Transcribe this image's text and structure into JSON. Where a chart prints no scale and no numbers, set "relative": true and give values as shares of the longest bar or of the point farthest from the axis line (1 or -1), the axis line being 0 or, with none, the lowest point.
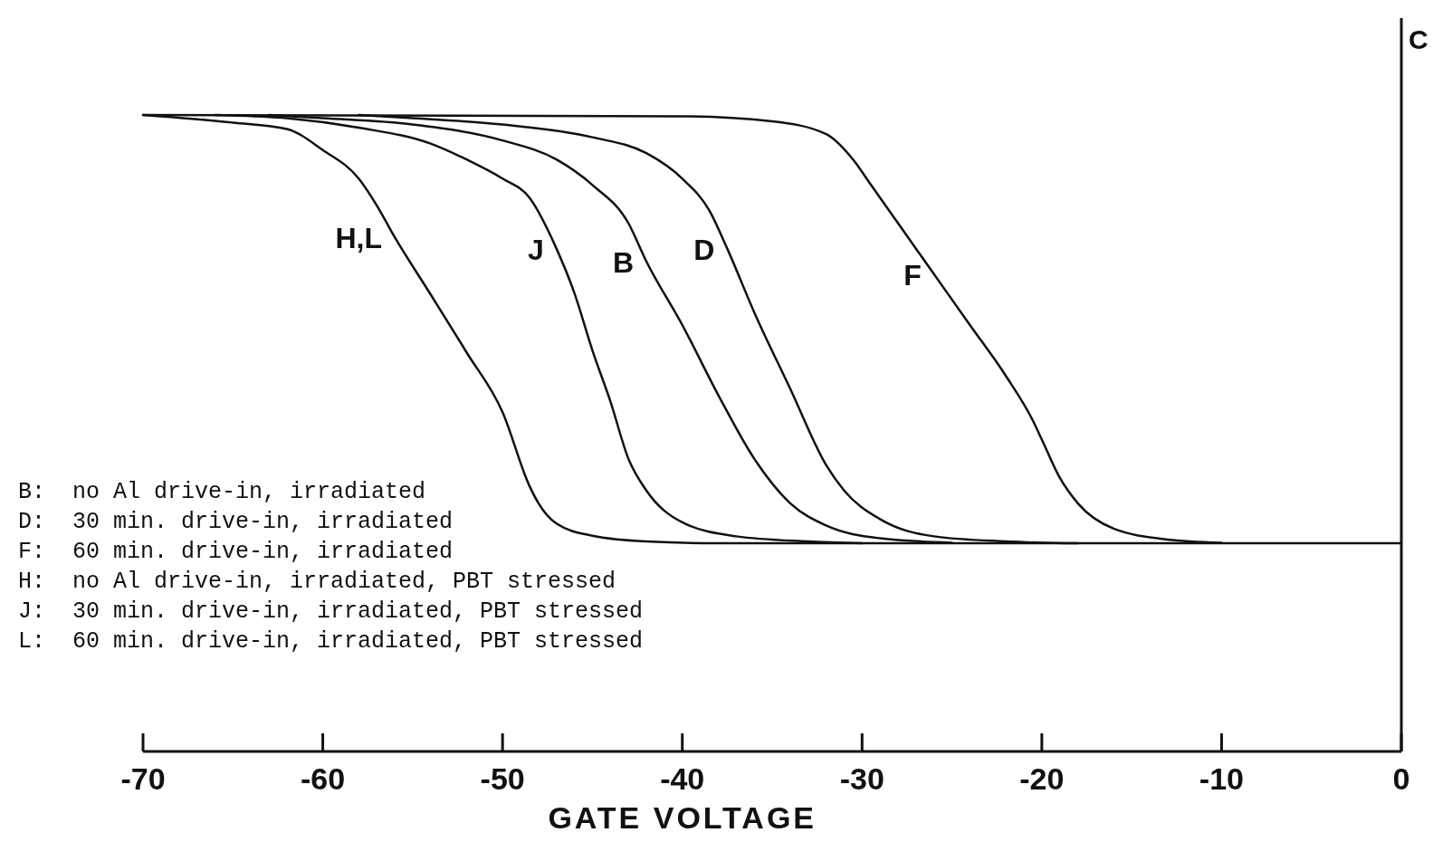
{
  "chart_data": {
    "type": "line",
    "relative": true,
    "xlabel": "GATE VOLTAGE",
    "ylabel": "C",
    "xlim": [
      -70,
      0
    ],
    "xticks": [
      -70,
      -60,
      -50,
      -40,
      -30,
      -20,
      -10,
      0
    ],
    "series": [
      {
        "name": "H,L",
        "color": "#111111",
        "x": [
          -70,
          -65,
          -62,
          -60,
          -58,
          -57,
          -56,
          -54,
          -52,
          -50,
          -48.5,
          -48,
          -47,
          -45,
          -42,
          -38,
          0
        ],
        "values": [
          1,
          0.988,
          0.978,
          0.945,
          0.9,
          0.858,
          0.808,
          0.718,
          0.627,
          0.533,
          0.417,
          0.39,
          0.358,
          0.339,
          0.33,
          0.327,
          0.327
        ]
      },
      {
        "name": "J",
        "color": "#111111",
        "x": [
          -66,
          -62,
          -58,
          -54,
          -52,
          -50,
          -48.5,
          -47,
          -46,
          -45,
          -44,
          -43,
          -42,
          -40,
          -37,
          -33,
          -30
        ],
        "values": [
          1,
          0.995,
          0.98,
          0.955,
          0.93,
          0.9,
          0.87,
          0.79,
          0.72,
          0.63,
          0.55,
          0.46,
          0.41,
          0.36,
          0.338,
          0.33,
          0.327
        ]
      },
      {
        "name": "B",
        "color": "#111111",
        "x": [
          -63,
          -60,
          -55,
          -50,
          -47,
          -45,
          -43,
          -42,
          -40,
          -38,
          -36,
          -34,
          -32,
          -29,
          -25
        ],
        "values": [
          1,
          0.995,
          0.985,
          0.96,
          0.93,
          0.89,
          0.83,
          0.77,
          0.67,
          0.56,
          0.46,
          0.39,
          0.355,
          0.335,
          0.328
        ]
      },
      {
        "name": "D",
        "color": "#111111",
        "x": [
          -58,
          -55,
          -50,
          -45,
          -42,
          -40,
          -38.5,
          -37.5,
          -36,
          -34,
          -32,
          -31,
          -29,
          -26,
          -22,
          -18
        ],
        "values": [
          1,
          0.995,
          0.985,
          0.965,
          0.94,
          0.9,
          0.85,
          0.79,
          0.69,
          0.57,
          0.45,
          0.41,
          0.365,
          0.338,
          0.33,
          0.327
        ]
      },
      {
        "name": "F",
        "color": "#111111",
        "x": [
          -70,
          -40,
          -35,
          -32,
          -30.5,
          -29.5,
          -28,
          -26,
          -24,
          -22,
          -20.5,
          -20,
          -19,
          -18,
          -16,
          -13,
          -10
        ],
        "values": [
          1,
          0.998,
          0.99,
          0.97,
          0.93,
          0.89,
          0.83,
          0.75,
          0.67,
          0.59,
          0.52,
          0.49,
          0.43,
          0.39,
          0.35,
          0.333,
          0.328
        ]
      }
    ],
    "annotations": [
      "B:  no Al drive-in, irradiated",
      "D:  30 min. drive-in, irradiated",
      "F:  60 min. drive-in, irradiated",
      "H:  no Al drive-in, irradiated, PBT stressed",
      "J:  30 min. drive-in, irradiated, PBT stressed",
      "L:  60 min. drive-in, irradiated, PBT stressed"
    ]
  }
}
